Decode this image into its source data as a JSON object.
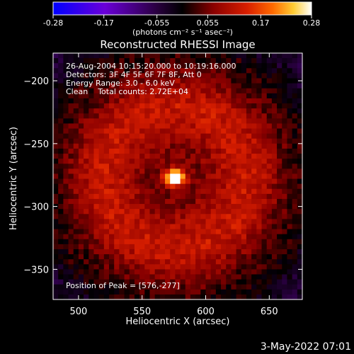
{
  "chart_data": {
    "type": "heatmap",
    "title": "Reconstructed RHESSI Image",
    "xlabel": "Heliocentric X (arcsec)",
    "ylabel": "Heliocentric Y (arcsec)",
    "xlim": [
      480,
      676
    ],
    "ylim": [
      -374,
      -178
    ],
    "x_ticks": [
      500,
      550,
      600,
      650
    ],
    "y_ticks": [
      -200,
      -250,
      -300,
      -350
    ],
    "colorbar": {
      "ticks": [
        "-0.28",
        "-0.17",
        "-0.055",
        "0.055",
        "0.17",
        "0.28"
      ],
      "range": [
        -0.28,
        0.28
      ],
      "unit_label": "(photons cm⁻² s⁻¹ asec⁻²)",
      "colors": [
        "#0000ff",
        "#6a00d8",
        "#2a0040",
        "#000000",
        "#8a0000",
        "#d81e00",
        "#ff6a00",
        "#ffcc33",
        "#ffffff"
      ]
    },
    "annotations": [
      "26-Aug-2004 10:15:20.000 to 10:19:16.000",
      "Detectors: 3F 4F 5F 6F 7F 8F, Att 0",
      "Energy Range: 3.0 - 6.0 keV",
      "Clean    Total counts: 2.72E+04"
    ],
    "peak_label": "Position of Peak = [576,-277]",
    "peak": {
      "x": 576,
      "y": -277,
      "value": 0.28
    },
    "ring": {
      "center": [
        576,
        -277
      ],
      "radius": 58,
      "mean_value": 0.09
    },
    "grid": false
  },
  "footer": {
    "timestamp": "3-May-2022 07:01"
  }
}
